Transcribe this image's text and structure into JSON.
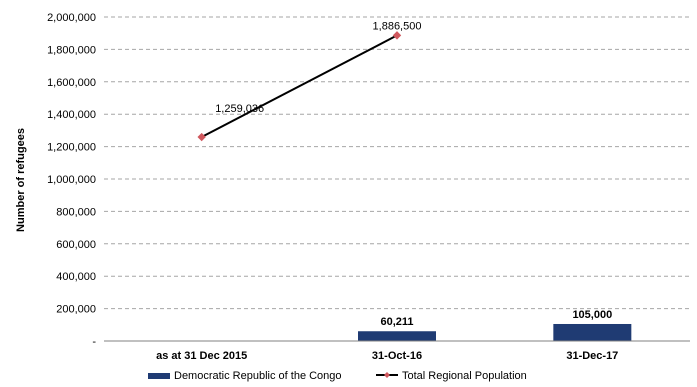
{
  "chart_data": {
    "type": "bar",
    "title": "",
    "xlabel": "",
    "ylabel": "Number of refugees",
    "categories": [
      "as at 31 Dec 2015",
      "31-Oct-16",
      "31-Dec-17"
    ],
    "ylim": [
      0,
      2000000
    ],
    "y_ticks": [
      0,
      200000,
      400000,
      600000,
      800000,
      1000000,
      1200000,
      1400000,
      1600000,
      1800000,
      2000000
    ],
    "y_tick_labels": [
      "-",
      "200,000",
      "400,000",
      "600,000",
      "800,000",
      "1,000,000",
      "1,200,000",
      "1,400,000",
      "1,600,000",
      "1,800,000",
      "2,000,000"
    ],
    "grid": true,
    "legend_position": "bottom",
    "series": [
      {
        "name": "Democratic Republic of the Congo",
        "kind": "bar",
        "color": "#1f3b73",
        "values": [
          null,
          60211,
          105000
        ],
        "data_labels": [
          "",
          "60,211",
          "105,000"
        ]
      },
      {
        "name": "Total Regional Population",
        "kind": "line",
        "line_color": "#000000",
        "marker_color": "#d0585e",
        "marker": "diamond",
        "values": [
          1259036,
          1886500,
          null
        ],
        "data_labels": [
          "1,259,036",
          "1,886,500",
          ""
        ]
      }
    ]
  }
}
